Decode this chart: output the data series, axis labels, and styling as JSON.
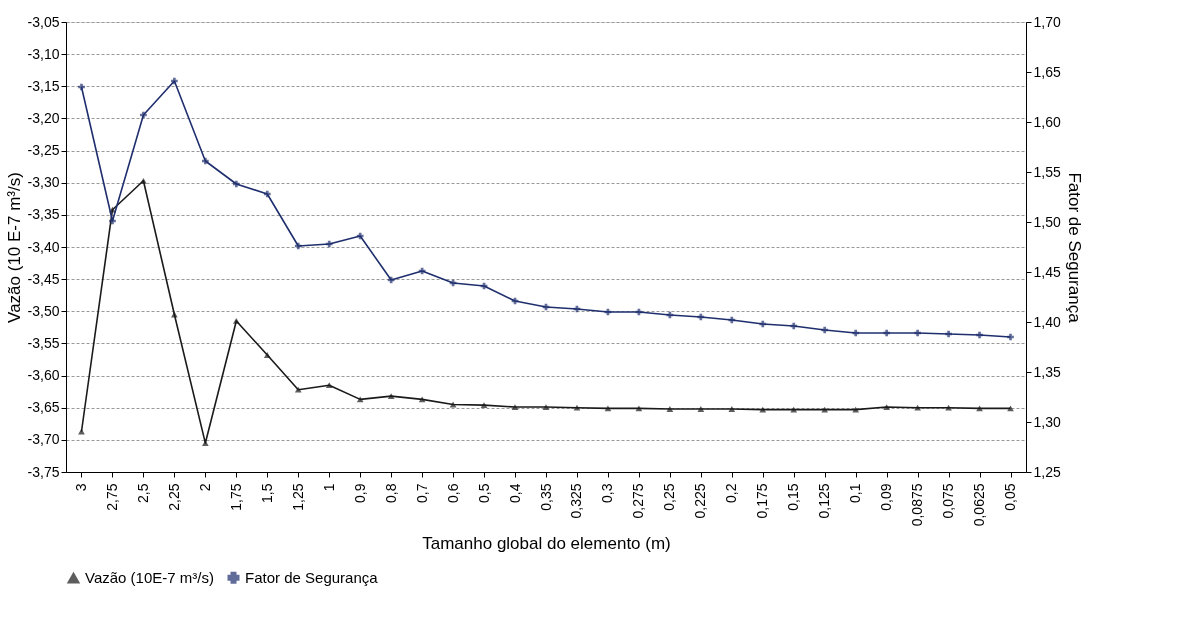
{
  "chart_data": {
    "type": "line",
    "xlabel": "Tamanho global do elemento (m)",
    "ylabel": "Vazão (10 E-7 m³/s)",
    "y2label": "Fator de Segurança",
    "categories": [
      "3",
      "2,75",
      "2,5",
      "2,25",
      "2",
      "1,75",
      "1,5",
      "1,25",
      "1",
      "0,9",
      "0,8",
      "0,7",
      "0,6",
      "0,5",
      "0,4",
      "0,35",
      "0,325",
      "0,3",
      "0,275",
      "0,25",
      "0,225",
      "0,2",
      "0,175",
      "0,15",
      "0,125",
      "0,1",
      "0,09",
      "0,0875",
      "0,075",
      "0,0625",
      "0,05"
    ],
    "series": [
      {
        "name": "Vazão (10E-7 m³/s)",
        "color": "#1a1a1a",
        "marker": "triangle",
        "values": [
          -3.687,
          -3.342,
          -3.297,
          -3.505,
          -3.705,
          -3.515,
          -3.568,
          -3.622,
          -3.615,
          -3.637,
          -3.632,
          -3.637,
          -3.645,
          -3.646,
          -3.649,
          -3.649,
          -3.65,
          -3.651,
          -3.651,
          -3.652,
          -3.652,
          -3.652,
          -3.653,
          -3.653,
          -3.653,
          -3.653,
          -3.649,
          -3.65,
          -3.65,
          -3.651,
          -3.651
        ]
      },
      {
        "name": "Fator de Segurança",
        "color": "#1f2f6e",
        "marker": "cross",
        "axis": "y2",
        "values": [
          1.635,
          1.501,
          1.607,
          1.641,
          1.561,
          1.538,
          1.528,
          1.476,
          1.478,
          1.486,
          1.442,
          1.451,
          1.439,
          1.436,
          1.421,
          1.415,
          1.413,
          1.41,
          1.41,
          1.407,
          1.405,
          1.402,
          1.398,
          1.396,
          1.392,
          1.389,
          1.389,
          1.389,
          1.388,
          1.387,
          1.385
        ]
      }
    ],
    "ylim": [
      -3.75,
      -3.05
    ],
    "yticks": [
      {
        "value": -3.75,
        "label": "-3,75"
      },
      {
        "value": -3.7,
        "label": "-3,70"
      },
      {
        "value": -3.65,
        "label": "-3,65"
      },
      {
        "value": -3.6,
        "label": "-3,60"
      },
      {
        "value": -3.55,
        "label": "-3,55"
      },
      {
        "value": -3.5,
        "label": "-3,50"
      },
      {
        "value": -3.45,
        "label": "-3,45"
      },
      {
        "value": -3.4,
        "label": "-3,40"
      },
      {
        "value": -3.35,
        "label": "-3,35"
      },
      {
        "value": -3.3,
        "label": "-3,30"
      },
      {
        "value": -3.25,
        "label": "-3,25"
      },
      {
        "value": -3.2,
        "label": "-3,20"
      },
      {
        "value": -3.15,
        "label": "-3,15"
      },
      {
        "value": -3.1,
        "label": "-3,10"
      },
      {
        "value": -3.05,
        "label": "-3,05"
      }
    ],
    "y2lim": [
      1.25,
      1.7
    ],
    "y2ticks": [
      {
        "value": 1.25,
        "label": "1,25"
      },
      {
        "value": 1.3,
        "label": "1,30"
      },
      {
        "value": 1.35,
        "label": "1,35"
      },
      {
        "value": 1.4,
        "label": "1,40"
      },
      {
        "value": 1.45,
        "label": "1,45"
      },
      {
        "value": 1.5,
        "label": "1,50"
      },
      {
        "value": 1.55,
        "label": "1,55"
      },
      {
        "value": 1.6,
        "label": "1,60"
      },
      {
        "value": 1.65,
        "label": "1,65"
      },
      {
        "value": 1.7,
        "label": "1,70"
      }
    ],
    "grid": "y",
    "legend": "bottom",
    "line_style": "solid"
  }
}
